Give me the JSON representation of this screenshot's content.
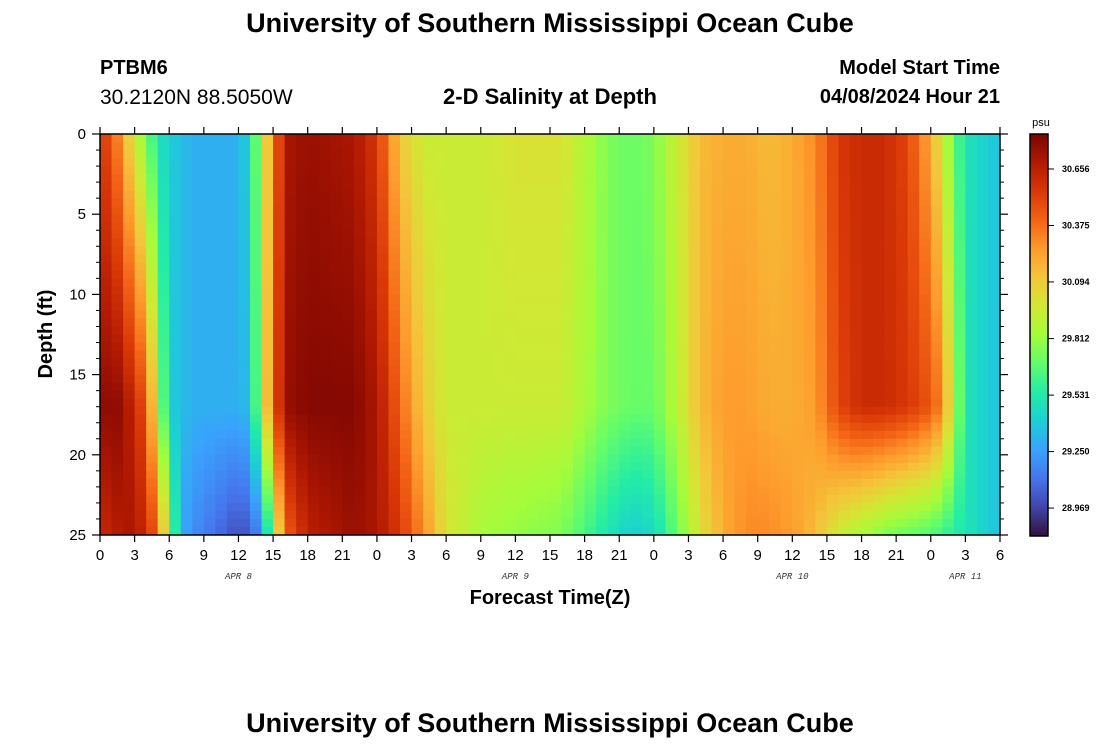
{
  "header": {
    "title": "University of Southern Mississippi Ocean Cube",
    "station_id": "PTBM6",
    "coordinates": "30.2120N  88.5050W",
    "chart_title": "2-D Salinity at Depth",
    "model_start_label": "Model Start Time",
    "model_start_time": "04/08/2024 Hour 21"
  },
  "footer": {
    "title": "University of Southern Mississippi Ocean Cube"
  },
  "chart_data": {
    "type": "heatmap",
    "title": "2-D Salinity at Depth",
    "xlabel": "Forecast Time(Z)",
    "ylabel": "Depth (ft)",
    "x_ticks": [
      "0",
      "3",
      "6",
      "9",
      "12",
      "15",
      "18",
      "21",
      "0",
      "3",
      "6",
      "9",
      "12",
      "15",
      "18",
      "21",
      "0",
      "3",
      "6",
      "9",
      "12",
      "15",
      "18",
      "21",
      "0",
      "3",
      "6"
    ],
    "x_range_hours": [
      0,
      78
    ],
    "date_labels": [
      {
        "label": "APR 8",
        "hour": 12
      },
      {
        "label": "APR 9",
        "hour": 36
      },
      {
        "label": "APR 10",
        "hour": 60
      },
      {
        "label": "APR 11",
        "hour": 75
      }
    ],
    "y_ticks": [
      "0",
      "5",
      "10",
      "15",
      "20",
      "25"
    ],
    "ylim": [
      0,
      25
    ],
    "y_inverted": true,
    "colorbar": {
      "unit": "psu",
      "ticks": [
        "30.656",
        "30.375",
        "30.094",
        "29.812",
        "29.531",
        "29.250",
        "28.969"
      ],
      "range": [
        28.83,
        30.83
      ],
      "colors": [
        "#30123b",
        "#4145ab",
        "#4675ed",
        "#39a2fc",
        "#1bcfd4",
        "#24eca6",
        "#61fc6c",
        "#a4fc3b",
        "#d1e834",
        "#f3c63a",
        "#fe9b2d",
        "#f36315",
        "#d93807",
        "#b11901",
        "#7a0403"
      ]
    },
    "salinity_model": {
      "description": "Approximate salinity (psu) across forecast hours (columns) and depth in ft (rows)",
      "hours": [
        0,
        1,
        2,
        3,
        4,
        5,
        6,
        7,
        8,
        10,
        12,
        13,
        14,
        15,
        16,
        18,
        22,
        24,
        26,
        28,
        30,
        33,
        36,
        40,
        44,
        46,
        48,
        50,
        52,
        54,
        56,
        58,
        60,
        62,
        64,
        66,
        68,
        70,
        72,
        73,
        74,
        75,
        76,
        77,
        78
      ],
      "surface_psu": [
        30.55,
        30.45,
        30.2,
        29.95,
        29.75,
        29.5,
        29.4,
        29.35,
        29.3,
        29.3,
        29.3,
        29.45,
        29.9,
        30.3,
        30.7,
        30.75,
        30.7,
        30.55,
        30.1,
        29.95,
        29.95,
        29.95,
        30.0,
        30.0,
        29.75,
        29.7,
        29.75,
        29.95,
        30.15,
        30.2,
        30.2,
        30.15,
        30.2,
        30.3,
        30.55,
        30.6,
        30.6,
        30.5,
        30.2,
        29.95,
        29.7,
        29.5,
        29.45,
        29.4,
        29.35
      ],
      "mid_psu": [
        30.75,
        30.8,
        30.75,
        30.6,
        30.45,
        29.9,
        29.4,
        29.35,
        29.3,
        29.3,
        29.3,
        29.35,
        29.9,
        30.4,
        30.75,
        30.8,
        30.8,
        30.7,
        30.4,
        30.1,
        29.95,
        29.95,
        29.95,
        29.95,
        29.75,
        29.7,
        29.7,
        29.9,
        30.15,
        30.25,
        30.25,
        30.2,
        30.2,
        30.25,
        30.5,
        30.6,
        30.6,
        30.55,
        30.45,
        30.3,
        29.9,
        29.5,
        29.45,
        29.4,
        29.35
      ],
      "bottom_psu": [
        30.6,
        30.65,
        30.7,
        30.7,
        30.6,
        30.4,
        29.8,
        29.3,
        29.2,
        29.1,
        29.0,
        29.05,
        29.2,
        29.8,
        30.4,
        30.65,
        30.75,
        30.7,
        30.55,
        30.3,
        30.0,
        29.85,
        29.8,
        29.75,
        29.5,
        29.4,
        29.45,
        29.7,
        30.0,
        30.2,
        30.3,
        30.3,
        30.25,
        30.15,
        29.95,
        29.85,
        29.75,
        29.7,
        29.65,
        29.6,
        29.55,
        29.5,
        29.45,
        29.4,
        29.35
      ]
    }
  }
}
